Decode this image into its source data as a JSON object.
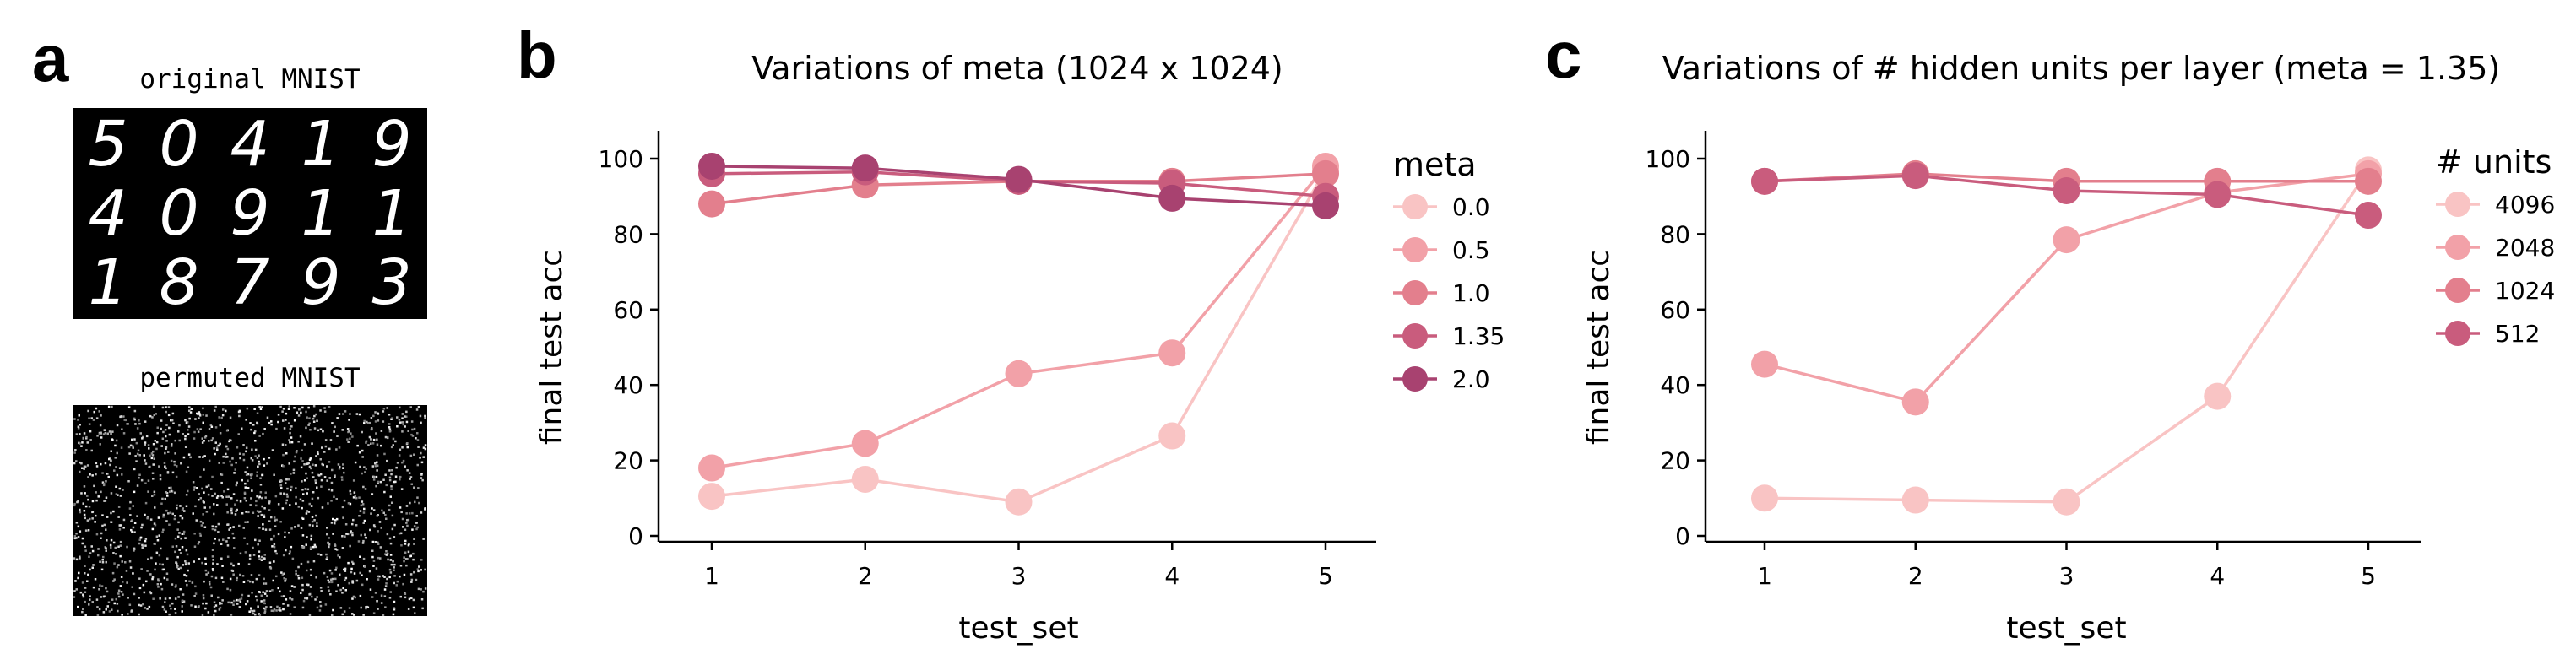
{
  "panels": {
    "a": {
      "letter": "a",
      "original_label": "original MNIST",
      "permuted_label": "permuted MNIST",
      "digit_rows": [
        [
          "5",
          "0",
          "4",
          "1",
          "9"
        ],
        [
          "4",
          "0",
          "9",
          "1",
          "1"
        ],
        [
          "1",
          "8",
          "7",
          "9",
          "3"
        ]
      ]
    },
    "b": {
      "letter": "b"
    },
    "c": {
      "letter": "c"
    }
  },
  "chart_data": [
    {
      "id": "b",
      "type": "line",
      "title": "Variations of meta (1024 x 1024)",
      "xlabel": "test_set",
      "ylabel": "final test acc",
      "x": [
        1,
        2,
        3,
        4,
        5
      ],
      "ylim": [
        0,
        100
      ],
      "yticks": [
        0,
        20,
        40,
        60,
        80,
        100
      ],
      "legend_title": "meta",
      "legend_position": "right",
      "grid": false,
      "series": [
        {
          "name": "0.0",
          "color": "#f9c4c4",
          "values": [
            10.5,
            15,
            9,
            26.5,
            97
          ]
        },
        {
          "name": "0.5",
          "color": "#f2a1a8",
          "values": [
            18,
            24.5,
            43,
            48.5,
            98
          ]
        },
        {
          "name": "1.0",
          "color": "#e37f8d",
          "values": [
            88,
            93,
            94,
            94,
            96
          ]
        },
        {
          "name": "1.35",
          "color": "#c95c7d",
          "values": [
            96,
            96.5,
            94,
            93.5,
            90
          ]
        },
        {
          "name": "2.0",
          "color": "#a84270",
          "values": [
            98,
            97.5,
            94.5,
            89.5,
            87.5
          ]
        }
      ]
    },
    {
      "id": "c",
      "type": "line",
      "title": "Variations of # hidden units per layer (meta = 1.35)",
      "xlabel": "test_set",
      "ylabel": "final test acc",
      "x": [
        1,
        2,
        3,
        4,
        5
      ],
      "ylim": [
        0,
        100
      ],
      "yticks": [
        0,
        20,
        40,
        60,
        80,
        100
      ],
      "legend_title": "# units",
      "legend_position": "right",
      "grid": false,
      "series": [
        {
          "name": "4096",
          "color": "#f9c4c4",
          "values": [
            10,
            9.5,
            9,
            37,
            97
          ]
        },
        {
          "name": "2048",
          "color": "#f2a1a8",
          "values": [
            45.5,
            35.5,
            78.5,
            91,
            96
          ]
        },
        {
          "name": "1024",
          "color": "#e37f8d",
          "values": [
            94,
            96,
            94,
            94,
            94
          ]
        },
        {
          "name": "512",
          "color": "#c95c7d",
          "values": [
            94,
            95.5,
            91.5,
            90.5,
            85
          ]
        }
      ]
    }
  ]
}
